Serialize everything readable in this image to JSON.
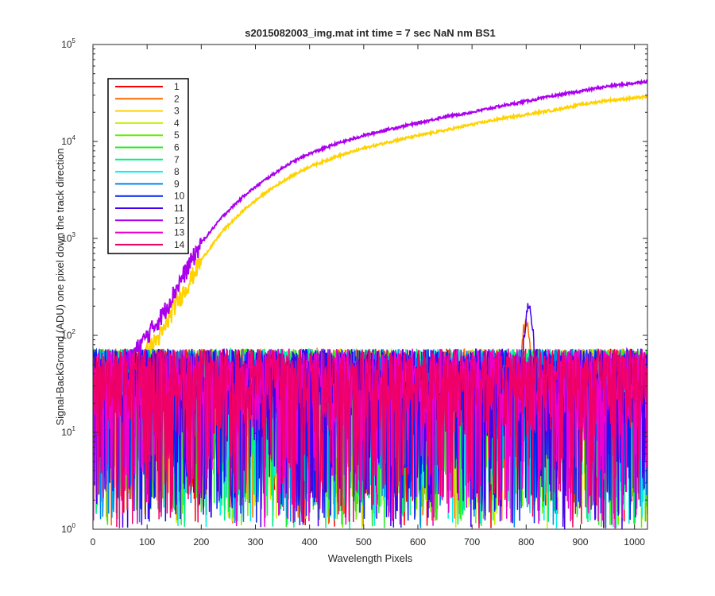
{
  "chart_data": {
    "type": "line",
    "title": "s2015082003_img.mat int time = 7 sec  NaN nm BS1",
    "xlabel": "Wavelength Pixels",
    "ylabel": "Signal-BackGround (ADU) one pixel down the track direction",
    "xlim": [
      0,
      1024
    ],
    "ylim": [
      1,
      100000
    ],
    "yscale": "log",
    "grid": false,
    "legend_position": "top-left",
    "x_ticks": [
      {
        "value": 0,
        "label": "0"
      },
      {
        "value": 100,
        "label": "100"
      },
      {
        "value": 200,
        "label": "200"
      },
      {
        "value": 300,
        "label": "300"
      },
      {
        "value": 400,
        "label": "400"
      },
      {
        "value": 500,
        "label": "500"
      },
      {
        "value": 600,
        "label": "600"
      },
      {
        "value": 700,
        "label": "700"
      },
      {
        "value": 800,
        "label": "800"
      },
      {
        "value": 900,
        "label": "900"
      },
      {
        "value": 1000,
        "label": "1000"
      }
    ],
    "y_ticks": [
      {
        "value": 1,
        "base": "10",
        "exp": "0"
      },
      {
        "value": 10,
        "base": "10",
        "exp": "1"
      },
      {
        "value": 100,
        "base": "10",
        "exp": "2"
      },
      {
        "value": 1000,
        "base": "10",
        "exp": "3"
      },
      {
        "value": 10000,
        "base": "10",
        "exp": "4"
      },
      {
        "value": 100000,
        "base": "10",
        "exp": "5"
      }
    ],
    "series": [
      {
        "name": "1",
        "color": "#ff0000",
        "kind": "noise"
      },
      {
        "name": "2",
        "color": "#ff6a00",
        "kind": "noise",
        "peak": {
          "x": 800,
          "y": 150
        }
      },
      {
        "name": "3",
        "color": "#ffd200",
        "kind": "curve",
        "points": [
          [
            0,
            30
          ],
          [
            40,
            40
          ],
          [
            70,
            55
          ],
          [
            100,
            70
          ],
          [
            130,
            110
          ],
          [
            150,
            200
          ],
          [
            170,
            300
          ],
          [
            200,
            600
          ],
          [
            240,
            1200
          ],
          [
            280,
            2000
          ],
          [
            320,
            3000
          ],
          [
            360,
            4200
          ],
          [
            400,
            5500
          ],
          [
            450,
            7000
          ],
          [
            500,
            8500
          ],
          [
            550,
            10000
          ],
          [
            600,
            11500
          ],
          [
            650,
            13000
          ],
          [
            700,
            15000
          ],
          [
            750,
            17000
          ],
          [
            800,
            19000
          ],
          [
            850,
            21000
          ],
          [
            900,
            24000
          ],
          [
            950,
            26500
          ],
          [
            1000,
            28000
          ],
          [
            1024,
            29000
          ]
        ]
      },
      {
        "name": "4",
        "color": "#c8ee00",
        "kind": "noise"
      },
      {
        "name": "5",
        "color": "#66ee00",
        "kind": "noise"
      },
      {
        "name": "6",
        "color": "#22ee22",
        "kind": "noise"
      },
      {
        "name": "7",
        "color": "#00ee88",
        "kind": "noise"
      },
      {
        "name": "8",
        "color": "#00eeee",
        "kind": "noise"
      },
      {
        "name": "9",
        "color": "#0088ee",
        "kind": "noise"
      },
      {
        "name": "10",
        "color": "#0022ee",
        "kind": "noise"
      },
      {
        "name": "11",
        "color": "#4400ee",
        "kind": "noise",
        "peak": {
          "x": 805,
          "y": 220
        }
      },
      {
        "name": "12",
        "color": "#aa00ee",
        "kind": "curve",
        "points": [
          [
            0,
            30
          ],
          [
            40,
            45
          ],
          [
            70,
            60
          ],
          [
            100,
            100
          ],
          [
            130,
            170
          ],
          [
            150,
            280
          ],
          [
            170,
            450
          ],
          [
            200,
            900
          ],
          [
            240,
            1700
          ],
          [
            280,
            2800
          ],
          [
            320,
            4100
          ],
          [
            360,
            5800
          ],
          [
            400,
            7500
          ],
          [
            450,
            9500
          ],
          [
            500,
            11500
          ],
          [
            550,
            13500
          ],
          [
            600,
            15500
          ],
          [
            650,
            18000
          ],
          [
            700,
            20000
          ],
          [
            750,
            23000
          ],
          [
            800,
            26000
          ],
          [
            850,
            29500
          ],
          [
            900,
            33000
          ],
          [
            950,
            37000
          ],
          [
            1000,
            40000
          ],
          [
            1024,
            42000
          ]
        ]
      },
      {
        "name": "13",
        "color": "#ee00cc",
        "kind": "noise"
      },
      {
        "name": "14",
        "color": "#ee0066",
        "kind": "noise"
      }
    ]
  }
}
